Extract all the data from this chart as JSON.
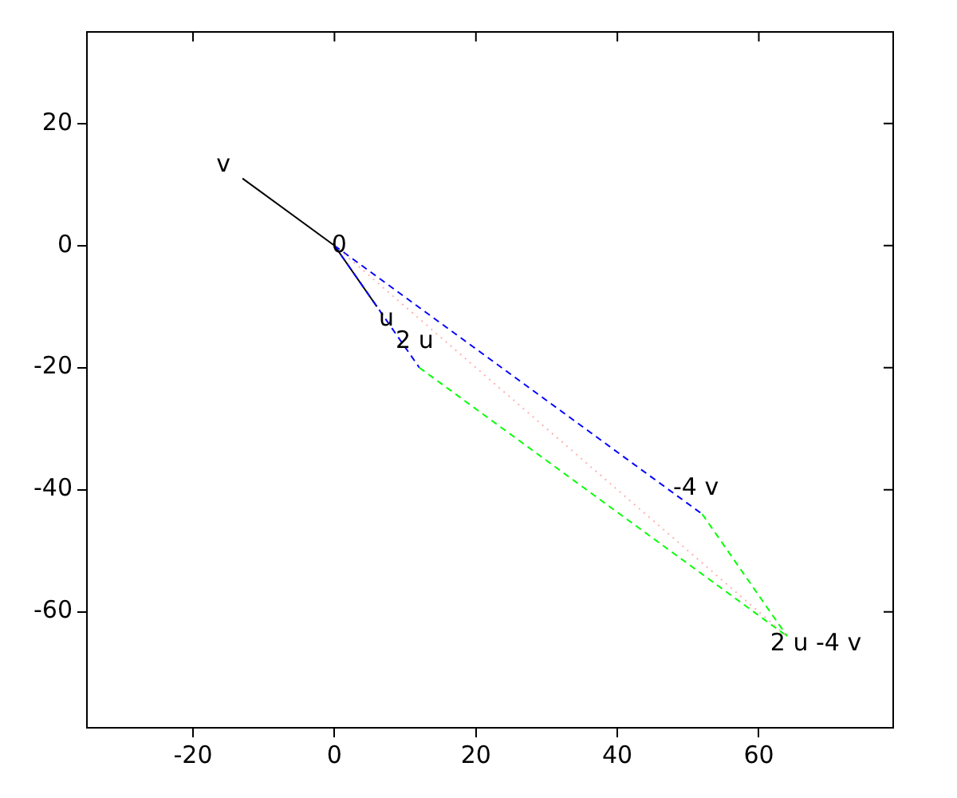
{
  "chart_data": {
    "type": "line",
    "xlim": [
      -35,
      79
    ],
    "ylim": [
      -79,
      35
    ],
    "xticks": [
      -20,
      0,
      20,
      40,
      60
    ],
    "yticks": [
      -60,
      -40,
      -20,
      0,
      20
    ],
    "grid": false,
    "legend": false,
    "marker": "none",
    "series": [
      {
        "color": "#ffb0b0",
        "line_style": "dotted",
        "x": [
          0,
          64
        ],
        "values": [
          0,
          -64
        ]
      },
      {
        "color": "#00ff00",
        "line_style": "dashed",
        "x": [
          12,
          64
        ],
        "values": [
          -20,
          -64
        ]
      },
      {
        "color": "#00ff00",
        "line_style": "dashed",
        "x": [
          52,
          64
        ],
        "values": [
          -44,
          -64
        ]
      },
      {
        "color": "#0000ff",
        "line_style": "dashed",
        "x": [
          0,
          12
        ],
        "values": [
          0,
          -20
        ]
      },
      {
        "color": "#0000ff",
        "line_style": "dashed",
        "x": [
          0,
          52
        ],
        "values": [
          0,
          -44
        ]
      },
      {
        "color": "#000000",
        "line_style": "solid",
        "x": [
          -13,
          0,
          6
        ],
        "values": [
          11,
          0,
          -10
        ]
      }
    ],
    "annotations": [
      {
        "text": "v",
        "x": -13,
        "y": 11
      },
      {
        "text": "0",
        "x": 0,
        "y": 0
      },
      {
        "text": "u",
        "x": 6,
        "y": -10
      },
      {
        "text": "2 u",
        "x": 12,
        "y": -20
      },
      {
        "text": "-4 v",
        "x": 52,
        "y": -44
      },
      {
        "text": "2 u -4 v",
        "x": 64,
        "y": -64
      }
    ]
  }
}
